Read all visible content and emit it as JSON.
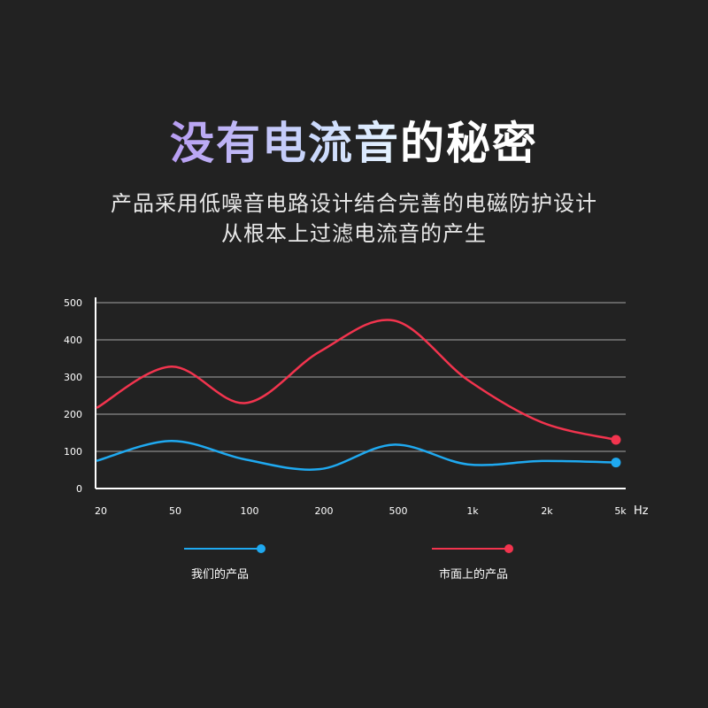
{
  "title_highlight": "没有电流音",
  "title_rest": "的秘密",
  "subtitle_line1": "产品采用低噪音电路设计结合完善的电磁防护设计",
  "subtitle_line2": "从根本上过滤电流音的产生",
  "colors": {
    "background": "#222222",
    "our_product": "#1fa9f0",
    "market_product": "#f2344e",
    "grid": "#8a8a8a",
    "axis": "#ffffff"
  },
  "chart_data": {
    "type": "line",
    "categories": [
      "20",
      "50",
      "100",
      "200",
      "500",
      "1k",
      "2k",
      "5k"
    ],
    "xlabel": "Hz",
    "ylabel": "",
    "yticks": [
      0,
      100,
      200,
      300,
      400,
      500
    ],
    "ylim": [
      0,
      500
    ],
    "grid": true,
    "legend_position": "bottom",
    "series": [
      {
        "name": "我们的产品",
        "color": "#1fa9f0",
        "values": [
          75,
          128,
          78,
          52,
          118,
          65,
          74,
          70
        ]
      },
      {
        "name": "市面上的产品",
        "color": "#f2344e",
        "values": [
          218,
          328,
          230,
          368,
          452,
          292,
          178,
          131
        ]
      }
    ]
  }
}
